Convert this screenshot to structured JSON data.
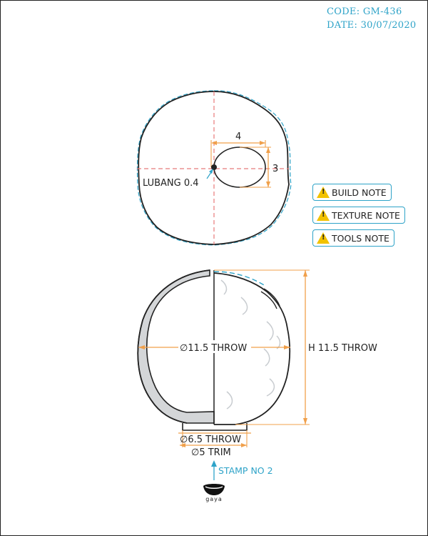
{
  "header": {
    "code": "CODE: GM-436",
    "date": "DATE: 30/07/2020"
  },
  "top_view": {
    "hole_width_label": "4",
    "hole_height_label": "3",
    "hole_callout": "LUBANG 0.4"
  },
  "side_view": {
    "diameter_label": "∅11.5 THROW",
    "height_label": "H 11.5 THROW",
    "base_diameter_label": "∅6.5 THROW",
    "trim_diameter_label": "∅5 TRIM"
  },
  "notes": [
    {
      "label": "BUILD NOTE",
      "icon": "warning-icon"
    },
    {
      "label": "TEXTURE NOTE",
      "icon": "warning-icon"
    },
    {
      "label": "TOOLS NOTE",
      "icon": "warning-icon"
    }
  ],
  "stamp": {
    "label": "STAMP NO 2",
    "logo_text": "gaya"
  },
  "colors": {
    "outline": "#222222",
    "dimension": "#f0a04b",
    "centerline": "#e87a7a",
    "accent": "#2ea3c8",
    "section_fill": "#d4d6d8",
    "warning": "#f2c200"
  }
}
